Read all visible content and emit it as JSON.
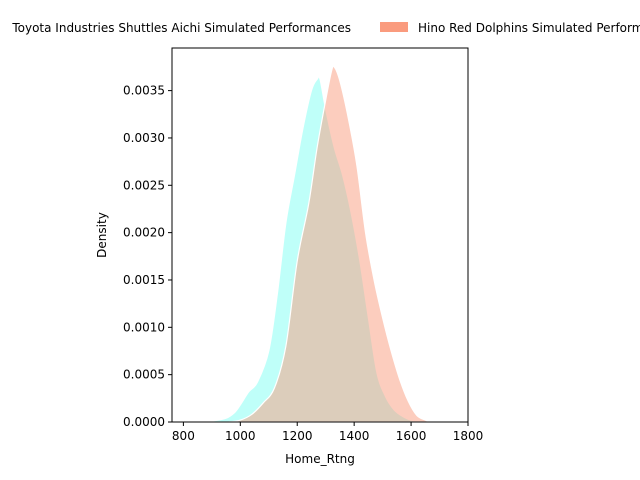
{
  "chart_data": {
    "type": "area",
    "xlabel": "Home_Rtng",
    "ylabel": "Density",
    "xlim": [
      760,
      1800
    ],
    "ylim": [
      0,
      0.00395
    ],
    "x_ticks": [
      800,
      1000,
      1200,
      1400,
      1600,
      1800
    ],
    "y_ticks": [
      0.0,
      0.0005,
      0.001,
      0.0015,
      0.002,
      0.0025,
      0.003,
      0.0035
    ],
    "x_tick_labels": [
      "800",
      "1000",
      "1200",
      "1400",
      "1600",
      "1800"
    ],
    "y_tick_labels": [
      "0.0000",
      "0.0005",
      "0.0010",
      "0.0015",
      "0.0020",
      "0.0025",
      "0.0030",
      "0.0035"
    ],
    "grid": false,
    "legend_placement": "top-center, outside plot",
    "series": [
      {
        "name": "Toyota Industries Shuttles Aichi Simulated Performances",
        "color": "#7ffff4",
        "x": [
          870,
          900,
          950,
          980,
          1000,
          1030,
          1060,
          1100,
          1130,
          1160,
          1190,
          1220,
          1250,
          1270,
          1280,
          1300,
          1330,
          1360,
          1390,
          1420,
          1450,
          1480,
          1510,
          1540,
          1570,
          1600,
          1640,
          1680
        ],
        "values": [
          0.0,
          1e-05,
          4e-05,
          0.0001,
          0.00018,
          0.00032,
          0.00042,
          0.00075,
          0.00135,
          0.0021,
          0.0026,
          0.0031,
          0.0035,
          0.00362,
          0.00362,
          0.0033,
          0.0029,
          0.0026,
          0.0022,
          0.0017,
          0.0011,
          0.00052,
          0.00027,
          0.00013,
          6e-05,
          2e-05,
          5e-06,
          0.0
        ]
      },
      {
        "name": "Hino Red Dolphins Simulated Performances",
        "color": "#fa9b7e",
        "x": [
          960,
          1000,
          1040,
          1080,
          1120,
          1160,
          1200,
          1240,
          1270,
          1300,
          1320,
          1330,
          1350,
          1380,
          1410,
          1440,
          1470,
          1500,
          1530,
          1560,
          1590,
          1620,
          1650,
          1670
        ],
        "values": [
          0.0,
          2e-05,
          8e-05,
          0.0002,
          0.00036,
          0.0008,
          0.0017,
          0.0023,
          0.0029,
          0.0034,
          0.0037,
          0.00375,
          0.0036,
          0.0032,
          0.0027,
          0.002,
          0.0015,
          0.0011,
          0.00075,
          0.00045,
          0.00022,
          7e-05,
          2e-05,
          0.0
        ]
      }
    ]
  }
}
